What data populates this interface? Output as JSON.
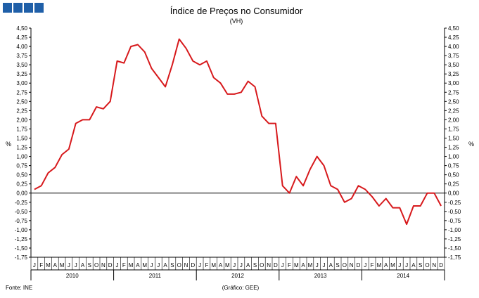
{
  "header": {
    "logo_blocks": 4,
    "logo_color": "#1f5fa8"
  },
  "chart_data": {
    "type": "line",
    "title": "Índice de Preços no Consumidor",
    "subtitle": "(VH)",
    "ylabel_left": "%",
    "ylabel_right": "%",
    "ylim": [
      -1.75,
      4.5
    ],
    "ytick_step": 0.25,
    "yticks": [
      "4,50",
      "4,25",
      "4,00",
      "3,75",
      "3,50",
      "3,25",
      "3,00",
      "2,75",
      "2,50",
      "2,25",
      "2,00",
      "1,75",
      "1,50",
      "1,25",
      "1,00",
      "0,75",
      "0,50",
      "0,25",
      "0,00",
      "-0,25",
      "-0,50",
      "-0,75",
      "-1,00",
      "-1,25",
      "-1,50",
      "-1,75"
    ],
    "month_labels": [
      "J",
      "F",
      "M",
      "A",
      "M",
      "J",
      "J",
      "A",
      "S",
      "O",
      "N",
      "D"
    ],
    "years": [
      "2010",
      "2011",
      "2012",
      "2013",
      "2014"
    ],
    "grid": false,
    "series": [
      {
        "color": "#d7191c",
        "values": [
          0.1,
          0.2,
          0.55,
          0.7,
          1.05,
          1.2,
          1.9,
          2.0,
          2.0,
          2.35,
          2.3,
          2.5,
          3.6,
          3.55,
          4.0,
          4.05,
          3.85,
          3.4,
          3.15,
          2.9,
          3.5,
          4.2,
          3.95,
          3.6,
          3.5,
          3.6,
          3.15,
          3.0,
          2.7,
          2.7,
          2.75,
          3.05,
          2.9,
          2.1,
          1.9,
          1.9,
          0.2,
          0.0,
          0.45,
          0.2,
          0.65,
          1.0,
          0.75,
          0.2,
          0.1,
          -0.25,
          -0.15,
          0.2,
          0.1,
          -0.1,
          -0.35,
          -0.15,
          -0.4,
          -0.4,
          -0.85,
          -0.35,
          -0.35,
          0.0,
          0.0,
          -0.35
        ]
      }
    ]
  },
  "footer": {
    "source": "Fonte: INE",
    "credit": "(Gráfico: GEE)"
  }
}
